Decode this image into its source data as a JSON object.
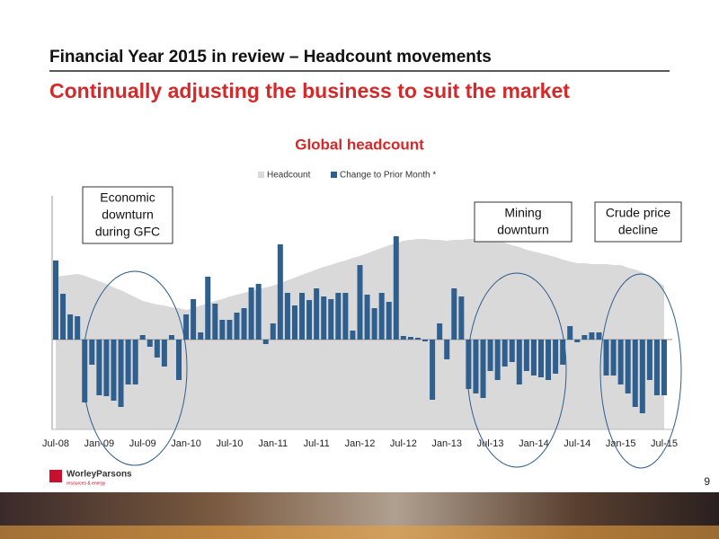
{
  "slide": {
    "title": "Financial Year 2015 in review – Headcount movements",
    "subtitle": "Continually adjusting the business to suit the market",
    "page_number": "9",
    "logo": "WorleyParsons",
    "tagline": "resources & energy"
  },
  "chart_data": {
    "type": "bar",
    "title": "Global headcount",
    "categories": [
      "Jul-08",
      null,
      null,
      null,
      null,
      null,
      "Jan-09",
      null,
      null,
      null,
      null,
      null,
      "Jul-09",
      null,
      null,
      null,
      null,
      null,
      "Jan-10",
      null,
      null,
      null,
      null,
      null,
      "Jul-10",
      null,
      null,
      null,
      null,
      null,
      "Jan-11",
      null,
      null,
      null,
      null,
      null,
      "Jul-11",
      null,
      null,
      null,
      null,
      null,
      "Jan-12",
      null,
      null,
      null,
      null,
      null,
      "Jul-12",
      null,
      null,
      null,
      null,
      null,
      "Jan-13",
      null,
      null,
      null,
      null,
      null,
      "Jul-13",
      null,
      null,
      null,
      null,
      null,
      "Jan-14",
      null,
      null,
      null,
      null,
      null,
      "Jul-14",
      null,
      null,
      null,
      null,
      null,
      "Jan-15",
      null,
      null,
      null,
      null,
      null,
      "Jul-15"
    ],
    "series": [
      {
        "name": "Headcount",
        "type": "area",
        "axis": "y2",
        "color": "#d9d9d9",
        "values": [
          170,
          171,
          172,
          173,
          171,
          168,
          165,
          162,
          158,
          155,
          151,
          147,
          143,
          141,
          139,
          138,
          136,
          135,
          133,
          135,
          138,
          140,
          143,
          145,
          148,
          150,
          152,
          154,
          156,
          158,
          160,
          163,
          166,
          169,
          172,
          175,
          178,
          181,
          183,
          186,
          188,
          191,
          193,
          196,
          199,
          202,
          205,
          207,
          210,
          211,
          212,
          212,
          211,
          211,
          210,
          211,
          211,
          212,
          212,
          213,
          213,
          210,
          208,
          205,
          203,
          200,
          198,
          196,
          194,
          192,
          189,
          187,
          185,
          185,
          184,
          184,
          184,
          183,
          183,
          180,
          178,
          175,
          170,
          165,
          160
        ]
      },
      {
        "name": "Change to Prior Month *",
        "type": "bar",
        "color": "#2f5f8f",
        "values": [
          88,
          51,
          28,
          26,
          -70,
          -28,
          -62,
          -63,
          -68,
          -75,
          -50,
          -50,
          5,
          -8,
          -20,
          -30,
          5,
          -45,
          28,
          45,
          8,
          70,
          40,
          22,
          22,
          30,
          35,
          58,
          62,
          -5,
          18,
          106,
          52,
          38,
          52,
          44,
          57,
          48,
          45,
          52,
          52,
          10,
          83,
          50,
          35,
          52,
          42,
          115,
          4,
          3,
          2,
          -2,
          -67,
          18,
          -22,
          57,
          48,
          -55,
          -60,
          -65,
          -35,
          -45,
          -30,
          -25,
          -50,
          -35,
          -40,
          -42,
          -45,
          -38,
          -28,
          15,
          -3,
          5,
          8,
          8,
          -40,
          -40,
          -50,
          -60,
          -75,
          -82,
          -45,
          -62,
          -62
        ]
      }
    ],
    "ylim": [
      -100,
      160
    ],
    "y2lim": [
      0,
      260
    ],
    "annotations": [
      {
        "lines": [
          "Economic",
          "downturn",
          "during GFC"
        ]
      },
      {
        "lines": [
          "Mining",
          "downturn"
        ]
      },
      {
        "lines": [
          "Crude price",
          "decline"
        ]
      }
    ]
  }
}
